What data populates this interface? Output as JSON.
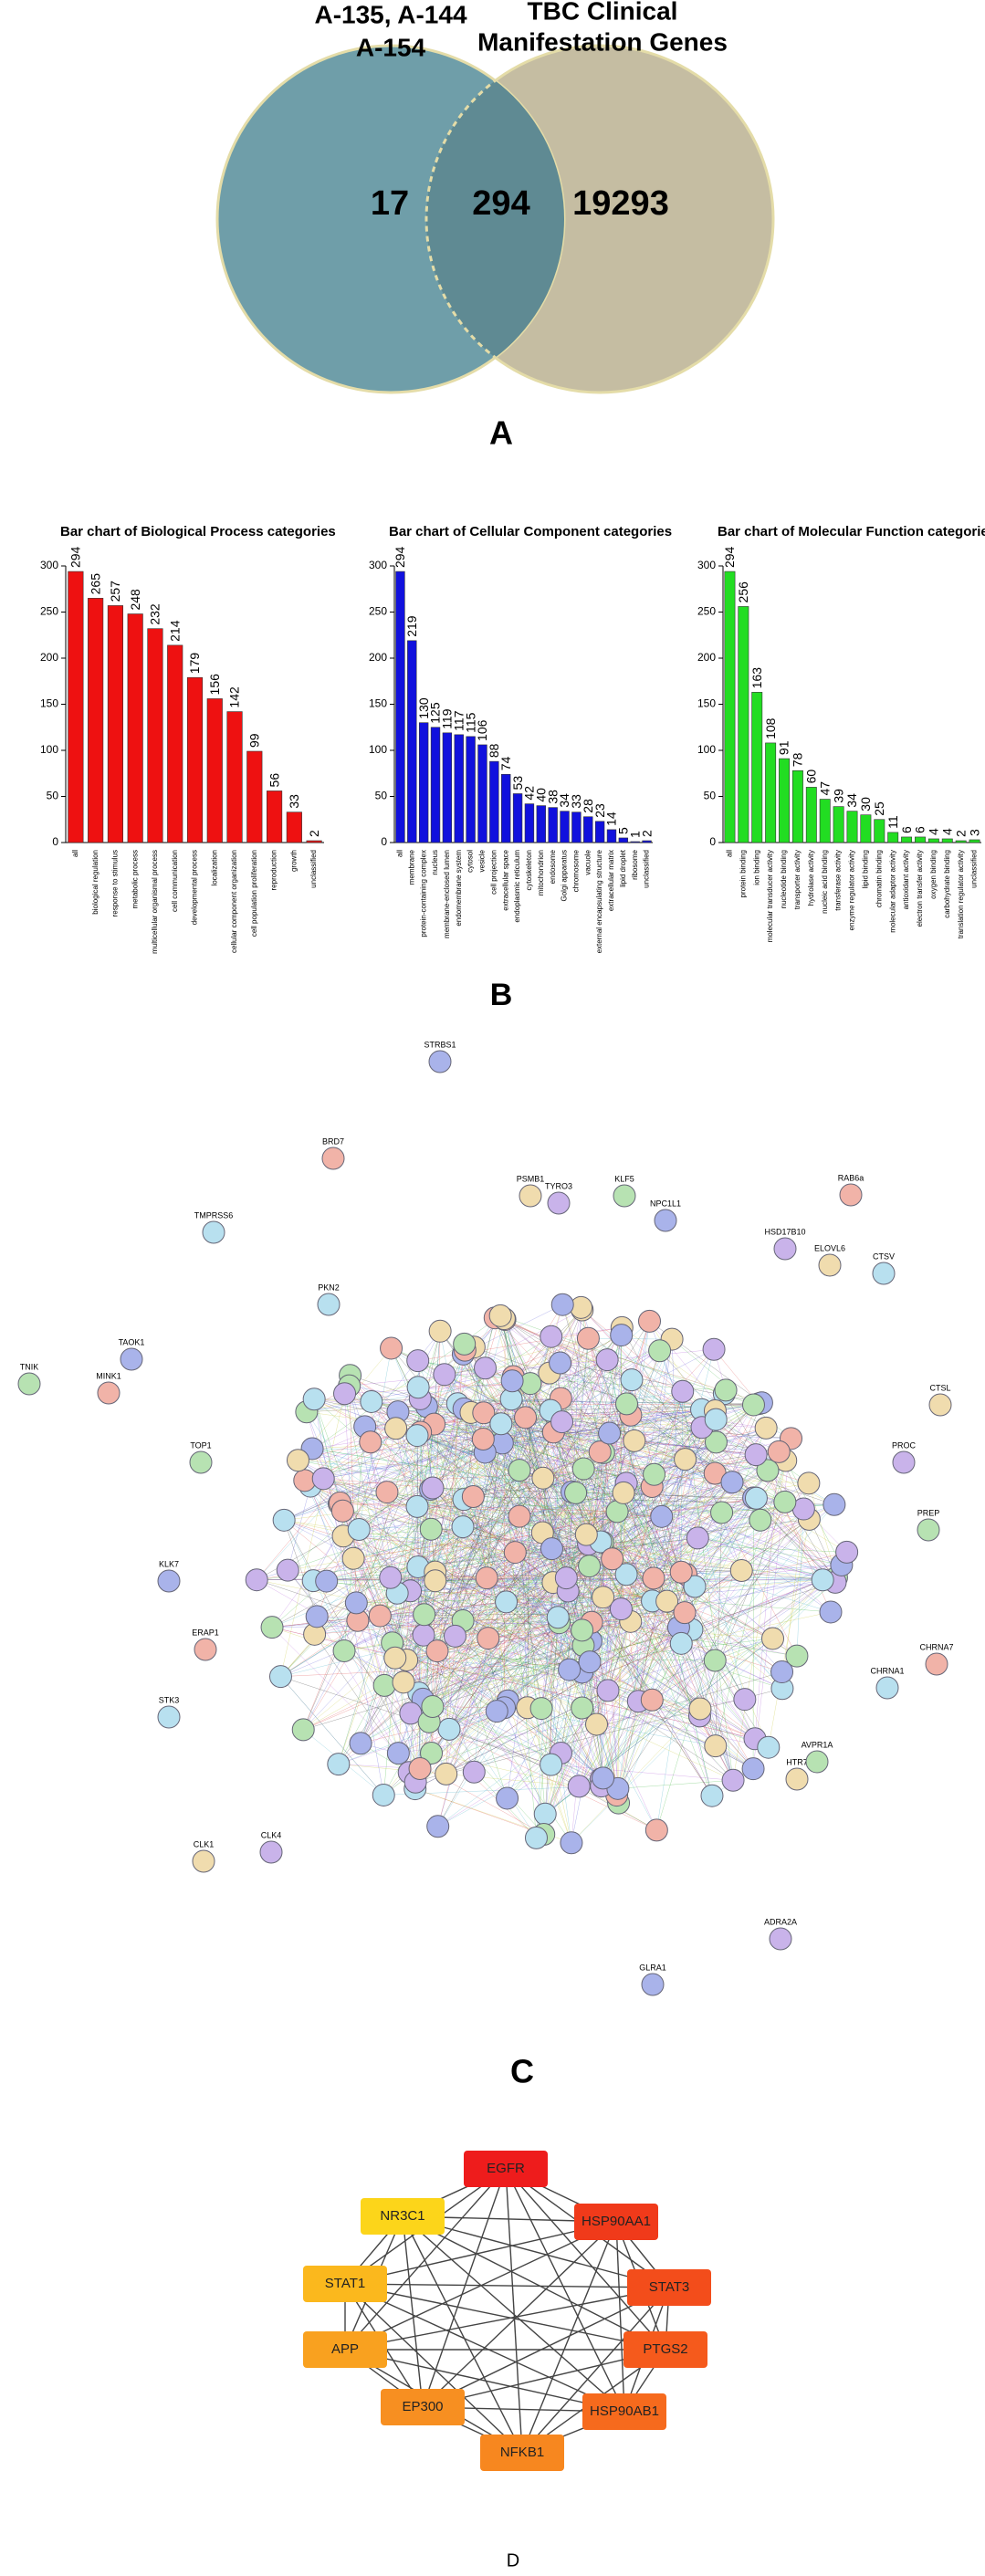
{
  "venn": {
    "left_label": [
      "A-135, A-144",
      "A-154"
    ],
    "right_label": [
      "TBC Clinical",
      "Manifestation Genes"
    ],
    "left_only": "17",
    "overlap": "294",
    "right_only": "19293",
    "colors": {
      "left": "#6f9ea9",
      "right": "#c5bda2",
      "overlap": "#5f8a93"
    }
  },
  "panel_labels": {
    "a": "A",
    "b": "B",
    "c": "C",
    "d": "D"
  },
  "chart_data": [
    {
      "type": "bar",
      "title": "Bar chart of Biological Process categories",
      "color": "#ee1111",
      "ylim": [
        0,
        300
      ],
      "yticks": [
        0,
        50,
        100,
        150,
        200,
        250,
        300
      ],
      "categories": [
        "all",
        "biological regulation",
        "response to stimulus",
        "metabolic process",
        "multicellular organismal process",
        "cell communication",
        "developmental process",
        "localization",
        "cellular component organization",
        "cell population proliferation",
        "reproduction",
        "growth",
        "unclassified"
      ],
      "values": [
        294,
        265,
        257,
        248,
        232,
        214,
        179,
        156,
        142,
        99,
        56,
        33,
        2
      ]
    },
    {
      "type": "bar",
      "title": "Bar chart of Cellular Component categories",
      "color": "#1111dd",
      "ylim": [
        0,
        300
      ],
      "yticks": [
        0,
        50,
        100,
        150,
        200,
        250,
        300
      ],
      "categories": [
        "all",
        "membrane",
        "protein-containing complex",
        "nucleus",
        "membrane-enclosed lumen",
        "endomembrane system",
        "cytosol",
        "vesicle",
        "cell projection",
        "extracellular space",
        "endoplasmic reticulum",
        "cytoskeleton",
        "mitochondrion",
        "endosome",
        "Golgi apparatus",
        "chromosome",
        "vacuole",
        "external encapsulating structure",
        "extracellular matrix",
        "lipid droplet",
        "ribosome",
        "unclassified"
      ],
      "values": [
        294,
        219,
        130,
        125,
        119,
        117,
        115,
        106,
        88,
        74,
        53,
        42,
        40,
        38,
        34,
        33,
        28,
        23,
        14,
        5,
        1,
        2
      ]
    },
    {
      "type": "bar",
      "title": "Bar chart of Molecular Function categorie",
      "color": "#22dd22",
      "ylim": [
        0,
        300
      ],
      "yticks": [
        0,
        50,
        100,
        150,
        200,
        250,
        300
      ],
      "categories": [
        "all",
        "protein binding",
        "ion binding",
        "molecular transducer activity",
        "nucleotide binding",
        "transporter activity",
        "hydrolase activity",
        "nucleic acid binding",
        "transferase activity",
        "enzyme regulator activity",
        "lipid binding",
        "chromatin binding",
        "molecular adaptor activity",
        "antioxidant activity",
        "electron transfer activity",
        "oxygen binding",
        "carbohydrate binding",
        "translation regulator activity",
        "unclassified"
      ],
      "values": [
        294,
        256,
        163,
        108,
        91,
        78,
        60,
        47,
        39,
        34,
        30,
        25,
        11,
        6,
        6,
        4,
        4,
        2,
        3
      ]
    }
  ],
  "network_c": {
    "labels": [
      "STRBS1",
      "BRD7",
      "TMPRSS6",
      "PSMB1",
      "TYRO3",
      "KLF5",
      "NPC1L1",
      "RAB6a",
      "CTSV",
      "ELOVL6",
      "HSD17B10",
      "TNIK",
      "TAOK1",
      "MINK1",
      "PKN2",
      "CTSL",
      "PROC",
      "PREP",
      "KLK7",
      "ERAP1",
      "STK3",
      "CLK1",
      "CLK4",
      "TOP1",
      "GLRA1",
      "CHRNA7",
      "CHRNA1",
      "HTR7",
      "ADRA2A",
      "AVPR1A"
    ]
  },
  "network_d": {
    "nodes": [
      {
        "label": "EGFR",
        "color": "#ee1c1c"
      },
      {
        "label": "HSP90AA1",
        "color": "#f03a1a"
      },
      {
        "label": "STAT3",
        "color": "#f34d1b"
      },
      {
        "label": "PTGS2",
        "color": "#f55a1c"
      },
      {
        "label": "HSP90AB1",
        "color": "#f66a1d"
      },
      {
        "label": "NFKB1",
        "color": "#f7871f"
      },
      {
        "label": "EP300",
        "color": "#f78f21"
      },
      {
        "label": "APP",
        "color": "#f9a11f"
      },
      {
        "label": "STAT1",
        "color": "#fbb81d"
      },
      {
        "label": "NR3C1",
        "color": "#fcd51a"
      }
    ]
  }
}
